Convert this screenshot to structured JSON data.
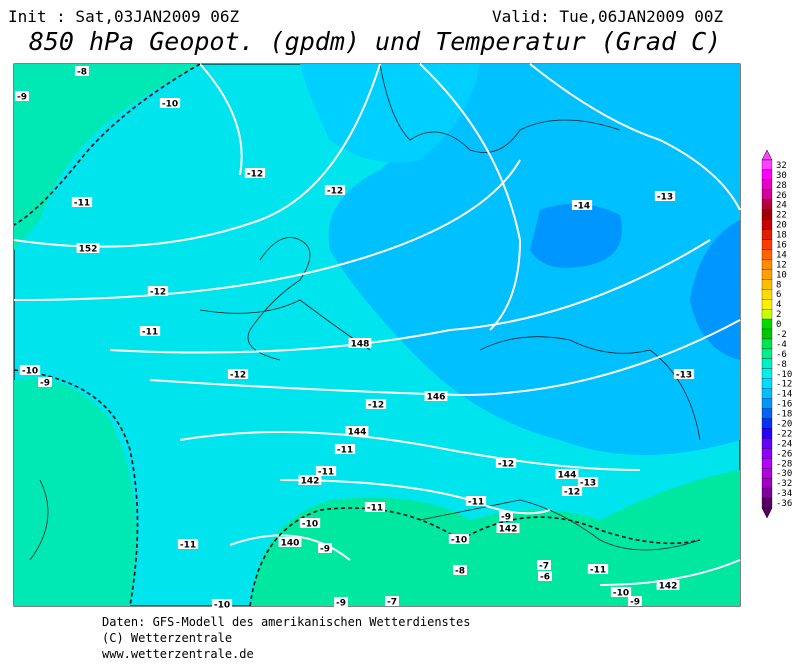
{
  "header": {
    "init": "Init : Sat,03JAN2009 06Z",
    "valid": "Valid: Tue,06JAN2009 00Z",
    "title": "850 hPa Geopot. (gpdm) und Temperatur (Grad C)"
  },
  "contour_labels": [
    "-8",
    "-9",
    "-10",
    "-12",
    "-12",
    "-11",
    "152",
    "-12",
    "-11",
    "-14",
    "-13",
    "148",
    "-10",
    "-9",
    "-12",
    "146",
    "-12",
    "-13",
    "144",
    "-11",
    "-12",
    "144",
    "-13",
    "-12",
    "-11",
    "142",
    "-11",
    "-11",
    "-9",
    "142",
    "-10",
    "-11",
    "140",
    "-9",
    "-10",
    "-7",
    "-6",
    "-8",
    "-11",
    "142",
    "-10",
    "-9",
    "-9",
    "-7",
    "-10"
  ],
  "colorbar": {
    "labels": [
      32,
      30,
      28,
      26,
      24,
      22,
      20,
      18,
      16,
      14,
      12,
      10,
      8,
      6,
      4,
      2,
      0,
      -2,
      -4,
      -6,
      -8,
      -10,
      -12,
      -14,
      -16,
      -18,
      -20,
      -22,
      -24,
      -26,
      -28,
      -30,
      -32,
      -34,
      -36
    ],
    "colors": [
      "#ff40ff",
      "#ff00ff",
      "#e600c8",
      "#d20096",
      "#b4003c",
      "#a00000",
      "#c80000",
      "#e11e00",
      "#ff3c00",
      "#ff6400",
      "#ff8c00",
      "#ffa000",
      "#ffbe00",
      "#ffdc00",
      "#fff000",
      "#c8ff00",
      "#00dc00",
      "#00c800",
      "#00e650",
      "#00f08c",
      "#00f0c8",
      "#00f0f0",
      "#00dcff",
      "#00beff",
      "#0096ff",
      "#0064ff",
      "#0032ff",
      "#2800ff",
      "#6400ff",
      "#8c00ff",
      "#b400ff",
      "#b400dc",
      "#a000c8",
      "#8200a0",
      "#5a0064"
    ]
  },
  "footer": [
    "Daten: GFS-Modell des amerikanischen Wetterdienstes",
    "(C) Wetterzentrale",
    "www.wetterzentrale.de"
  ]
}
